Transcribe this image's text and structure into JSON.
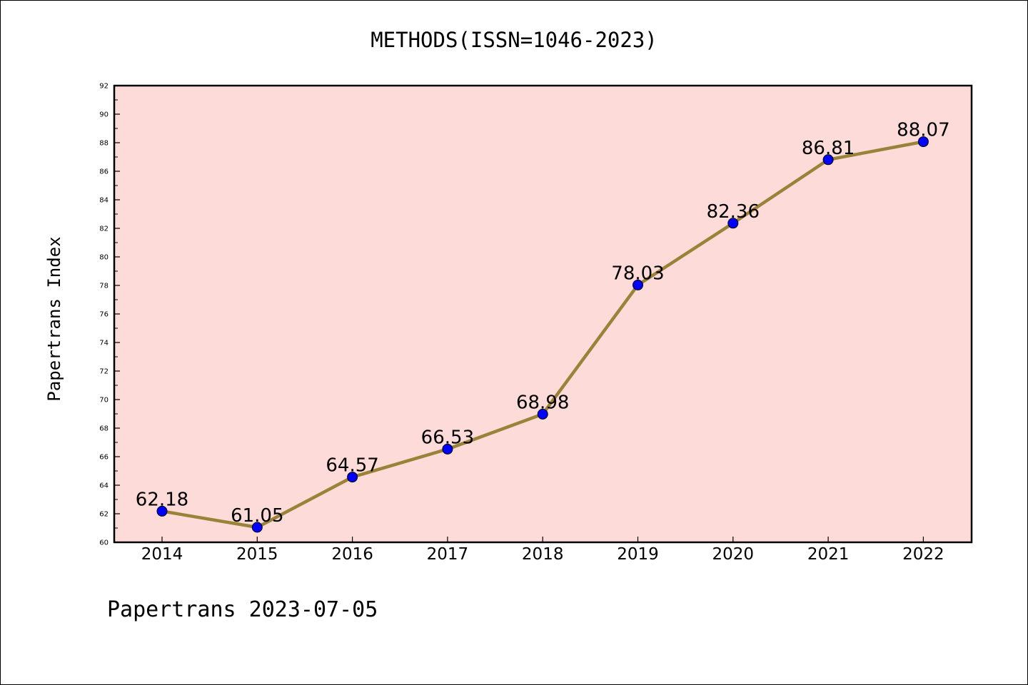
{
  "chart_data": {
    "type": "line",
    "title": "METHODS(ISSN=1046-2023)",
    "xlabel": "",
    "ylabel": "Papertrans Index",
    "x": [
      "2014",
      "2015",
      "2016",
      "2017",
      "2018",
      "2019",
      "2020",
      "2021",
      "2022"
    ],
    "values": [
      62.18,
      61.05,
      64.57,
      66.53,
      68.98,
      78.03,
      82.36,
      86.81,
      88.07
    ],
    "data_labels": [
      "62.18",
      "61.05",
      "64.57",
      "66.53",
      "68.98",
      "78.03",
      "82.36",
      "86.81",
      "88.07"
    ],
    "ylim": [
      60,
      92
    ],
    "yticks": [
      60,
      62,
      64,
      66,
      68,
      70,
      72,
      74,
      76,
      78,
      80,
      82,
      84,
      86,
      88,
      90,
      92
    ],
    "grid": false,
    "legend": "none",
    "colors": {
      "plot_background": "#fddbd9",
      "line": "#9a8239",
      "marker": "#0000ff",
      "marker_edge": "#000000"
    }
  },
  "footer": "Papertrans 2023-07-05"
}
